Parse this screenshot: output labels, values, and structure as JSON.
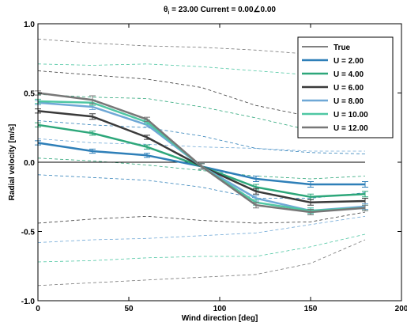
{
  "chart_data": {
    "type": "line",
    "title_prefix": "θ",
    "title_sub": "i",
    "title_rest": " = 23.00 Current = 0.00∠0.00",
    "xlabel": "Wind direction [deg]",
    "ylabel": "Radial velocity [m/s]",
    "xlim": [
      0,
      200
    ],
    "ylim": [
      -1.0,
      1.0
    ],
    "xticks": [
      0,
      50,
      100,
      150,
      200
    ],
    "xtick_labels": [
      "0",
      "50",
      "100",
      "150",
      "200"
    ],
    "yticks": [
      -1.0,
      -0.5,
      0.0,
      0.5,
      1.0
    ],
    "ytick_labels": [
      "-1.0",
      "-0.5",
      "0.0",
      "0.5",
      "1.0"
    ],
    "grid": false,
    "legend_position": "top-right",
    "x": [
      0,
      30,
      60,
      90,
      120,
      150,
      180
    ],
    "series": [
      {
        "name": "True",
        "color": "#000000",
        "width": 1,
        "errorbars": false,
        "x": [
          0,
          180
        ],
        "values": [
          0.0,
          0.0
        ]
      },
      {
        "name": "U = 2.00",
        "color": "#2e7fb8",
        "width": 2.5,
        "errorbars": true,
        "values": [
          0.14,
          0.08,
          0.05,
          -0.03,
          -0.12,
          -0.16,
          -0.16
        ],
        "err": [
          0.015,
          0.015,
          0.015,
          0.02,
          0.02,
          0.02,
          0.02
        ],
        "band_upper": [
          0.3,
          0.27,
          0.25,
          0.19,
          0.1,
          0.07,
          0.06
        ],
        "band_lower": [
          -0.09,
          -0.11,
          -0.13,
          -0.18,
          -0.26,
          -0.26,
          -0.22
        ]
      },
      {
        "name": "U = 4.00",
        "color": "#2da77a",
        "width": 2.5,
        "errorbars": true,
        "values": [
          0.27,
          0.21,
          0.11,
          -0.03,
          -0.18,
          -0.25,
          -0.23
        ],
        "err": [
          0.015,
          0.015,
          0.015,
          0.02,
          0.02,
          0.02,
          0.02
        ],
        "band_upper": [
          0.49,
          0.47,
          0.46,
          0.4,
          0.32,
          0.23,
          0.19
        ],
        "band_lower": [
          0.03,
          0.01,
          -0.02,
          -0.06,
          -0.1,
          -0.12,
          -0.1
        ]
      },
      {
        "name": "U = 6.00",
        "color": "#3a3a3a",
        "width": 2.5,
        "errorbars": true,
        "values": [
          0.37,
          0.33,
          0.18,
          -0.03,
          -0.21,
          -0.29,
          -0.28
        ],
        "err": [
          0.015,
          0.02,
          0.015,
          0.02,
          0.02,
          0.02,
          0.02
        ],
        "band_upper": [
          0.66,
          0.63,
          0.6,
          0.54,
          0.41,
          0.33,
          0.28
        ],
        "band_lower": [
          -0.44,
          -0.41,
          -0.39,
          -0.42,
          -0.44,
          -0.43,
          -0.36
        ]
      },
      {
        "name": "U = 8.00",
        "color": "#6fa8d6",
        "width": 2.5,
        "errorbars": true,
        "values": [
          0.43,
          0.4,
          0.27,
          -0.03,
          -0.26,
          -0.35,
          -0.32
        ],
        "err": [
          0.015,
          0.02,
          0.015,
          0.02,
          0.02,
          0.02,
          0.02
        ],
        "band_upper": [
          0.17,
          0.14,
          0.13,
          0.11,
          0.1,
          0.08,
          0.08
        ],
        "band_lower": [
          -0.58,
          -0.56,
          -0.55,
          -0.53,
          -0.51,
          -0.45,
          -0.39
        ]
      },
      {
        "name": "U = 10.00",
        "color": "#4fc7a3",
        "width": 2.5,
        "errorbars": true,
        "values": [
          0.44,
          0.43,
          0.29,
          -0.03,
          -0.29,
          -0.35,
          -0.33
        ],
        "err": [
          0.015,
          0.02,
          0.015,
          0.02,
          0.02,
          0.02,
          0.02
        ],
        "band_upper": [
          0.71,
          0.7,
          0.71,
          0.69,
          0.66,
          0.63,
          0.56
        ],
        "band_lower": [
          -0.72,
          -0.71,
          -0.69,
          -0.68,
          -0.68,
          -0.61,
          -0.52
        ]
      },
      {
        "name": "U = 12.00",
        "color": "#777777",
        "width": 2.5,
        "errorbars": true,
        "values": [
          0.5,
          0.45,
          0.31,
          -0.03,
          -0.31,
          -0.36,
          -0.33
        ],
        "err": [
          0.015,
          0.03,
          0.015,
          0.02,
          0.02,
          0.02,
          0.02
        ],
        "band_upper": [
          0.89,
          0.86,
          0.84,
          0.83,
          0.81,
          0.78,
          0.75
        ],
        "band_lower": [
          -0.89,
          -0.87,
          -0.85,
          -0.83,
          -0.81,
          -0.73,
          -0.56
        ]
      }
    ]
  }
}
